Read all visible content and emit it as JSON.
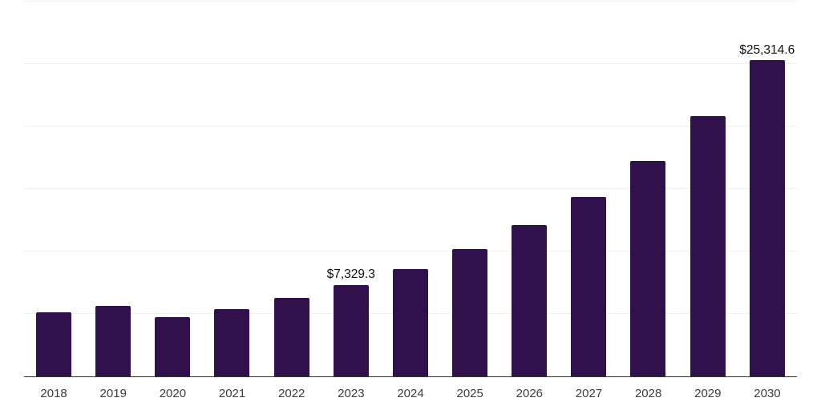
{
  "chart_data": {
    "type": "bar",
    "title": "",
    "xlabel": "",
    "ylabel": "",
    "categories": [
      "2018",
      "2019",
      "2020",
      "2021",
      "2022",
      "2023",
      "2024",
      "2025",
      "2026",
      "2027",
      "2028",
      "2029",
      "2030"
    ],
    "values": [
      5100,
      5610,
      4740,
      5360,
      6270,
      7329.3,
      8600,
      10180,
      12100,
      14340,
      17220,
      20850,
      25314.6
    ],
    "bar_labels": [
      "",
      "",
      "",
      "",
      "",
      "$7,329.3",
      "",
      "",
      "",
      "",
      "",
      "",
      "$25,314.6"
    ],
    "value_prefix": "$",
    "ylim": [
      0,
      30000
    ],
    "gridline_step": 5000,
    "grid": "horizontal",
    "legend": "none",
    "y_axis_tick_labels_visible": false
  },
  "colors": {
    "bar": "#31114c",
    "gridline": "#f1f1f3",
    "axis_line": "#333333",
    "bar_label_text": "#111111",
    "x_tick_text": "#3d3d3d",
    "background": "#ffffff"
  }
}
